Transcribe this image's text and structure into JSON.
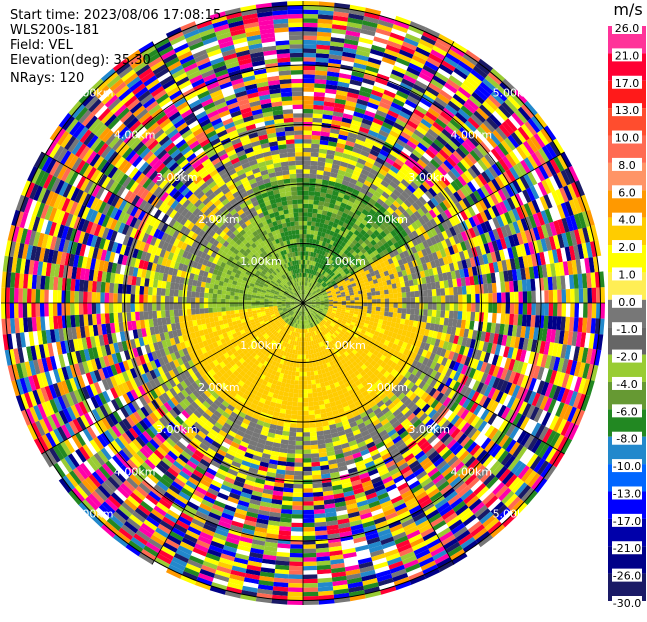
{
  "info": {
    "start_time": "Start time: 2023/08/06 17:08:15",
    "instrument": "WLS200s-181",
    "field": "Field: VEL",
    "elevation": "Elevation(deg): 35.30",
    "nrays": "NRays: 120"
  },
  "colorbar": {
    "unit": "m/s",
    "labels": [
      "26.0",
      "21.0",
      "17.0",
      "13.0",
      "10.0",
      "8.0",
      "6.0",
      "4.0",
      "2.0",
      "1.0",
      "0.0",
      "-1.0",
      "-2.0",
      "-4.0",
      "-6.0",
      "-8.0",
      "-10.0",
      "-13.0",
      "-17.0",
      "-21.0",
      "-26.0",
      "-30.0"
    ],
    "colors": [
      "#ff3399",
      "#ff0033",
      "#ff1a1a",
      "#ff4d2e",
      "#ff6a52",
      "#ff9466",
      "#ff9900",
      "#ffcc00",
      "#ffff00",
      "#ffee55",
      "#777777",
      "#666666",
      "#99cc33",
      "#669933",
      "#228822",
      "#2288cc",
      "#0066ff",
      "#0000ff",
      "#0000aa",
      "#000088",
      "#1a1a66",
      "#0d0d4d"
    ]
  },
  "ring_labels": [
    "1.00km",
    "2.00km",
    "3.00km",
    "4.00km",
    "5.00km"
  ],
  "palette": {
    "outer": [
      "#ff00aa",
      "#ff0033",
      "#ffff00",
      "#0000ff",
      "#228822",
      "#99cc33",
      "#ff9900",
      "#000088",
      "#777777",
      "#ffcc00",
      "#ff6a52",
      "#ffffff",
      "#2288cc",
      "#1a1a66"
    ],
    "inner_gray": "#777777",
    "near_yellow": "#ffcc00",
    "near_yellow2": "#ffff00",
    "near_green": "#99cc33",
    "dark_green": "#228822",
    "olive": "#669933"
  }
}
